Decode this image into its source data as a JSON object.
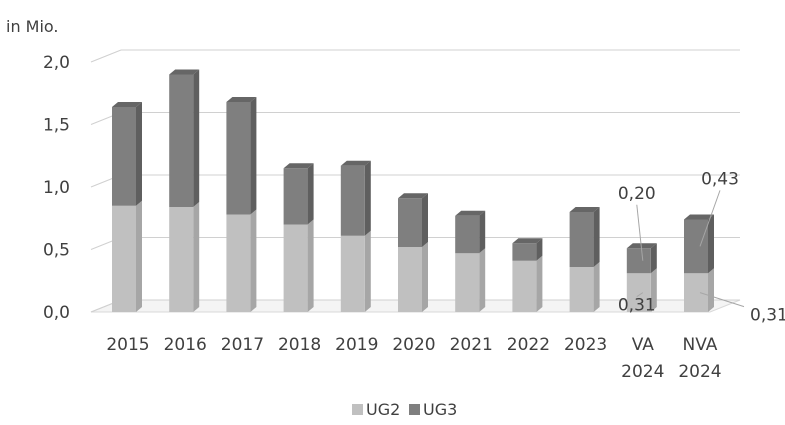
{
  "chart_data": {
    "type": "bar",
    "stacked": true,
    "style": "3d",
    "unit_label": "in Mio.",
    "categories": [
      [
        "2015"
      ],
      [
        "2016"
      ],
      [
        "2017"
      ],
      [
        "2018"
      ],
      [
        "2019"
      ],
      [
        "2020"
      ],
      [
        "2021"
      ],
      [
        "2022"
      ],
      [
        "2023"
      ],
      [
        "VA",
        "2024"
      ],
      [
        "NVA",
        "2024"
      ]
    ],
    "series": [
      {
        "name": "UG2",
        "color": "#c0c0c0",
        "side": "#a6a6a6",
        "top": "#d4d4d4",
        "values": [
          0.85,
          0.84,
          0.78,
          0.7,
          0.61,
          0.52,
          0.47,
          0.41,
          0.36,
          0.31,
          0.31
        ]
      },
      {
        "name": "UG3",
        "color": "#7f7f7f",
        "side": "#5f5f5f",
        "top": "#666666",
        "values": [
          0.79,
          1.06,
          0.9,
          0.45,
          0.56,
          0.39,
          0.3,
          0.14,
          0.44,
          0.2,
          0.43
        ]
      }
    ],
    "ylim": [
      0,
      2.0
    ],
    "yticks": [
      "0,0",
      "0,5",
      "1,0",
      "1,5",
      "2,0"
    ],
    "grid": true,
    "legend": "bottom",
    "data_labels": [
      {
        "text": "0,20",
        "category": 9,
        "series": 1
      },
      {
        "text": "0,31",
        "category": 9,
        "series": 0
      },
      {
        "text": "0,43",
        "category": 10,
        "series": 1
      },
      {
        "text": "0,31",
        "category": 10,
        "series": 0
      }
    ]
  }
}
